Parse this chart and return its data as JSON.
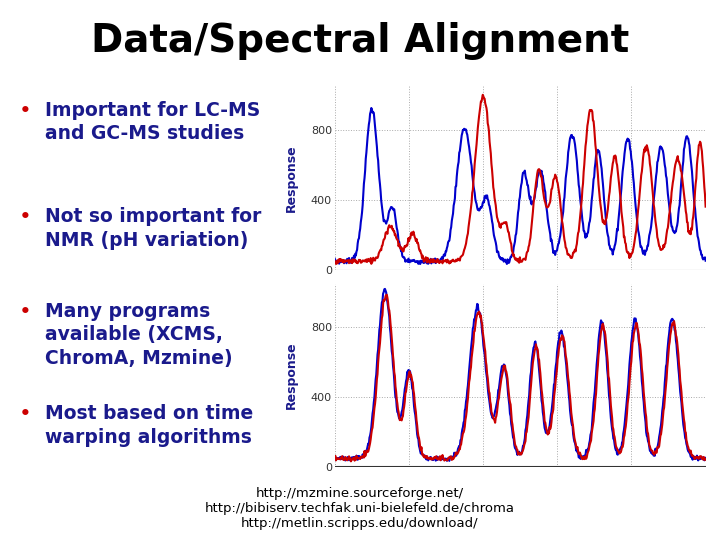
{
  "title": "Data/Spectral Alignment",
  "title_fontsize": 28,
  "title_fontweight": "bold",
  "title_color": "#000000",
  "background_color": "#ffffff",
  "panel_bg": "#c8c8c8",
  "plot_bg": "#ffffff",
  "bullet_dot_color": "#cc0000",
  "bullet_text_color": "#1a1a8c",
  "bullet_fontsize": 13.5,
  "bullet_items": [
    "Important for LC-MS\nand GC-MS studies",
    "Not so important for\nNMR (pH variation)",
    "Many programs\navailable (XCMS,\nChromA, Mzmine)",
    "Most based on time\nwarping algorithms"
  ],
  "footer_lines": [
    "http://mzmine.sourceforge.net/",
    "http://bibiserv.techfak.uni-bielefeld.de/chroma",
    "http://metlin.scripps.edu/download/"
  ],
  "footer_fontsize": 9.5,
  "footer_color": "#000000",
  "ylabel": "Response",
  "ylabel_color": "#1a1a8c",
  "ylabel_fontsize": 9,
  "yticks": [
    0,
    400,
    800
  ],
  "ytick_fontsize": 8,
  "grid_color": "#aaaaaa",
  "line_blue": "#0000cc",
  "line_red": "#cc0000",
  "line_width": 1.5
}
